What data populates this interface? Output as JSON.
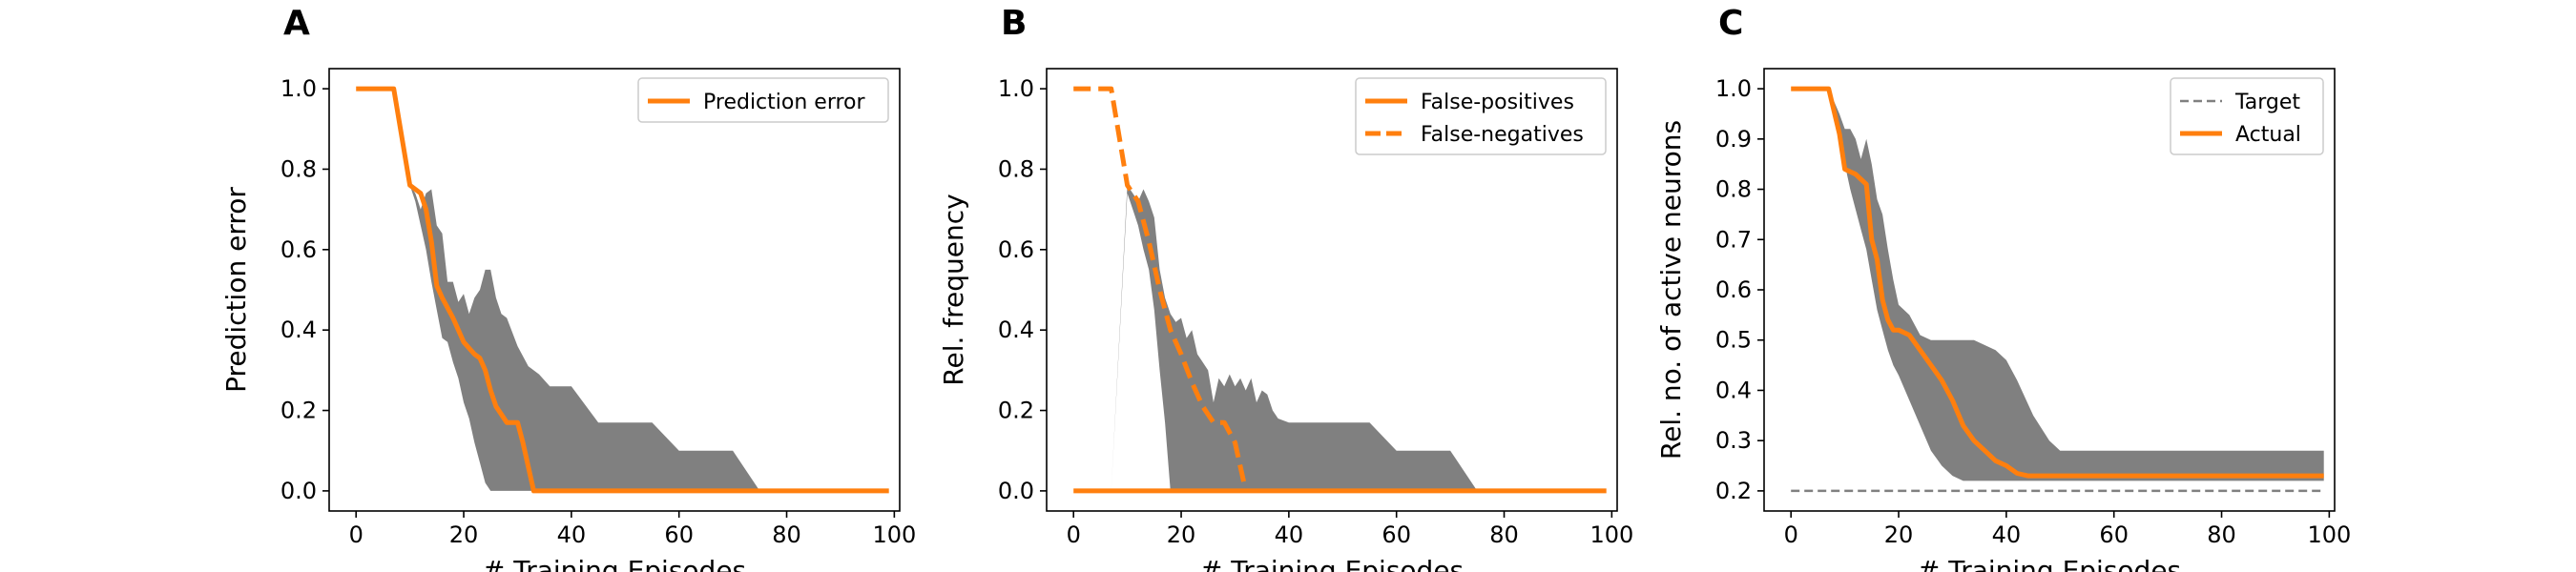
{
  "figure": {
    "panel_letters": [
      "A",
      "B",
      "C"
    ]
  },
  "colors": {
    "actual": "#ff7f0e",
    "band": "#808080",
    "target": "#808080",
    "axis": "#000000"
  },
  "chart_data": [
    {
      "type": "line",
      "letter": "A",
      "xlabel": "# Training Episodes",
      "ylabel": "Prediction error",
      "xlim": [
        -5,
        101
      ],
      "ylim": [
        -0.05,
        1.05
      ],
      "xticks": [
        0,
        20,
        40,
        60,
        80,
        100
      ],
      "yticks": [
        0.0,
        0.2,
        0.4,
        0.6,
        0.8,
        1.0
      ],
      "ytick_labels": [
        "0.0",
        "0.2",
        "0.4",
        "0.6",
        "0.8",
        "1.0"
      ],
      "legend": "top-right",
      "band": {
        "x": [
          0,
          7,
          10,
          11,
          12,
          13,
          14,
          15,
          16,
          17,
          18,
          19,
          20,
          21,
          22,
          23,
          24,
          25,
          26,
          27,
          28,
          30,
          32,
          34,
          36,
          38,
          40,
          45,
          50,
          55,
          60,
          65,
          70,
          75,
          80,
          90,
          99
        ],
        "upper": [
          1.0,
          1.0,
          0.76,
          0.74,
          0.7,
          0.74,
          0.75,
          0.66,
          0.64,
          0.52,
          0.52,
          0.47,
          0.49,
          0.44,
          0.48,
          0.5,
          0.55,
          0.55,
          0.48,
          0.44,
          0.43,
          0.36,
          0.31,
          0.29,
          0.26,
          0.26,
          0.26,
          0.17,
          0.17,
          0.17,
          0.1,
          0.1,
          0.1,
          0.0,
          0.0,
          0.0,
          0.0
        ],
        "lower": [
          1.0,
          1.0,
          0.76,
          0.72,
          0.66,
          0.6,
          0.52,
          0.45,
          0.38,
          0.37,
          0.32,
          0.28,
          0.22,
          0.18,
          0.12,
          0.07,
          0.02,
          0.0,
          0.0,
          0.0,
          0.0,
          0.0,
          0.0,
          0.0,
          0.0,
          0.0,
          0.0,
          0.0,
          0.0,
          0.0,
          0.0,
          0.0,
          0.0,
          0.0,
          0.0,
          0.0,
          0.0
        ]
      },
      "series": [
        {
          "name": "Prediction error",
          "style": "solid",
          "x": [
            0,
            7,
            10,
            12,
            13,
            14,
            15,
            16,
            18,
            20,
            22,
            23,
            24,
            25,
            26,
            28,
            29,
            30,
            31,
            33,
            40,
            50,
            60,
            70,
            80,
            90,
            99
          ],
          "y": [
            1.0,
            1.0,
            0.76,
            0.74,
            0.7,
            0.62,
            0.51,
            0.48,
            0.43,
            0.37,
            0.34,
            0.33,
            0.3,
            0.25,
            0.21,
            0.17,
            0.17,
            0.17,
            0.12,
            0.0,
            0.0,
            0.0,
            0.0,
            0.0,
            0.0,
            0.0,
            0.0
          ]
        }
      ]
    },
    {
      "type": "line",
      "letter": "B",
      "xlabel": "# Training Episodes",
      "ylabel": "Rel. frequency",
      "xlim": [
        -5,
        101
      ],
      "ylim": [
        -0.05,
        1.05
      ],
      "xticks": [
        0,
        20,
        40,
        60,
        80,
        100
      ],
      "yticks": [
        0.0,
        0.2,
        0.4,
        0.6,
        0.8,
        1.0
      ],
      "ytick_labels": [
        "0.0",
        "0.2",
        "0.4",
        "0.6",
        "0.8",
        "1.0"
      ],
      "legend": "top-right",
      "band": {
        "x": [
          0,
          7,
          10,
          11,
          12,
          13,
          14,
          15,
          16,
          17,
          18,
          19,
          20,
          21,
          22,
          23,
          24,
          25,
          26,
          27,
          28,
          29,
          30,
          31,
          32,
          33,
          34,
          35,
          36,
          37,
          38,
          40,
          45,
          50,
          55,
          60,
          65,
          70,
          75,
          80,
          90,
          99
        ],
        "upper": [
          0.0,
          0.0,
          0.76,
          0.74,
          0.72,
          0.75,
          0.72,
          0.68,
          0.55,
          0.48,
          0.44,
          0.42,
          0.43,
          0.38,
          0.4,
          0.34,
          0.32,
          0.3,
          0.22,
          0.28,
          0.26,
          0.29,
          0.26,
          0.28,
          0.25,
          0.28,
          0.22,
          0.25,
          0.24,
          0.2,
          0.18,
          0.17,
          0.17,
          0.17,
          0.17,
          0.1,
          0.1,
          0.1,
          0.0,
          0.0,
          0.0,
          0.0
        ],
        "lower": [
          0.0,
          0.0,
          0.74,
          0.7,
          0.66,
          0.6,
          0.55,
          0.45,
          0.3,
          0.17,
          0.0,
          0.0,
          0.0,
          0.0,
          0.0,
          0.0,
          0.0,
          0.0,
          0.0,
          0.0,
          0.0,
          0.0,
          0.0,
          0.0,
          0.0,
          0.0,
          0.0,
          0.0,
          0.0,
          0.0,
          0.0,
          0.0,
          0.0,
          0.0,
          0.0,
          0.0,
          0.0,
          0.0,
          0.0,
          0.0,
          0.0,
          0.0
        ]
      },
      "series": [
        {
          "name": "False-positives",
          "style": "solid",
          "x": [
            0,
            10,
            20,
            30,
            40,
            50,
            60,
            70,
            80,
            90,
            99
          ],
          "y": [
            0.0,
            0.0,
            0.0,
            0.0,
            0.0,
            0.0,
            0.0,
            0.0,
            0.0,
            0.0,
            0.0
          ]
        },
        {
          "name": "False-negatives",
          "style": "dashed",
          "x": [
            0,
            7,
            10,
            12,
            14,
            16,
            18,
            20,
            22,
            24,
            26,
            28,
            30,
            32
          ],
          "y": [
            1.0,
            1.0,
            0.76,
            0.72,
            0.62,
            0.5,
            0.4,
            0.34,
            0.27,
            0.21,
            0.17,
            0.17,
            0.12,
            0.0
          ]
        }
      ]
    },
    {
      "type": "line",
      "letter": "C",
      "xlabel": "# Training Episodes",
      "ylabel": "Rel. no. of active neurons",
      "xlim": [
        -5,
        101
      ],
      "ylim": [
        0.16,
        1.04
      ],
      "xticks": [
        0,
        20,
        40,
        60,
        80,
        100
      ],
      "yticks": [
        0.2,
        0.3,
        0.4,
        0.5,
        0.6,
        0.7,
        0.8,
        0.9,
        1.0
      ],
      "ytick_labels": [
        "0.2",
        "0.3",
        "0.4",
        "0.5",
        "0.6",
        "0.7",
        "0.8",
        "0.9",
        "1.0"
      ],
      "legend": "top-right",
      "band": {
        "x": [
          0,
          7,
          9,
          10,
          11,
          12,
          13,
          14,
          15,
          16,
          17,
          18,
          19,
          20,
          22,
          24,
          26,
          28,
          30,
          32,
          34,
          36,
          38,
          40,
          42,
          45,
          48,
          50,
          52,
          55,
          60,
          70,
          80,
          90,
          99
        ],
        "upper": [
          1.0,
          1.0,
          0.95,
          0.92,
          0.92,
          0.9,
          0.86,
          0.9,
          0.85,
          0.78,
          0.75,
          0.68,
          0.62,
          0.57,
          0.55,
          0.51,
          0.5,
          0.5,
          0.5,
          0.5,
          0.5,
          0.49,
          0.48,
          0.46,
          0.42,
          0.35,
          0.3,
          0.28,
          0.28,
          0.28,
          0.28,
          0.28,
          0.28,
          0.28,
          0.28
        ],
        "lower": [
          1.0,
          1.0,
          0.9,
          0.85,
          0.8,
          0.76,
          0.72,
          0.68,
          0.62,
          0.56,
          0.52,
          0.48,
          0.45,
          0.43,
          0.38,
          0.33,
          0.28,
          0.25,
          0.23,
          0.22,
          0.22,
          0.22,
          0.22,
          0.22,
          0.22,
          0.22,
          0.22,
          0.22,
          0.22,
          0.22,
          0.22,
          0.22,
          0.22,
          0.22,
          0.22
        ]
      },
      "series": [
        {
          "name": "Target",
          "style": "dashed-thin",
          "x": [
            0,
            99
          ],
          "y": [
            0.2,
            0.2
          ]
        },
        {
          "name": "Actual",
          "style": "solid",
          "x": [
            0,
            7,
            9,
            10,
            12,
            13,
            14,
            15,
            16,
            17,
            18,
            19,
            20,
            22,
            24,
            26,
            28,
            30,
            32,
            34,
            36,
            38,
            40,
            42,
            44,
            50,
            60,
            70,
            80,
            90,
            99
          ],
          "y": [
            1.0,
            1.0,
            0.91,
            0.84,
            0.83,
            0.82,
            0.81,
            0.7,
            0.66,
            0.58,
            0.54,
            0.52,
            0.52,
            0.51,
            0.48,
            0.45,
            0.42,
            0.38,
            0.33,
            0.3,
            0.28,
            0.26,
            0.25,
            0.235,
            0.23,
            0.23,
            0.23,
            0.23,
            0.23,
            0.23,
            0.23
          ]
        }
      ]
    }
  ]
}
